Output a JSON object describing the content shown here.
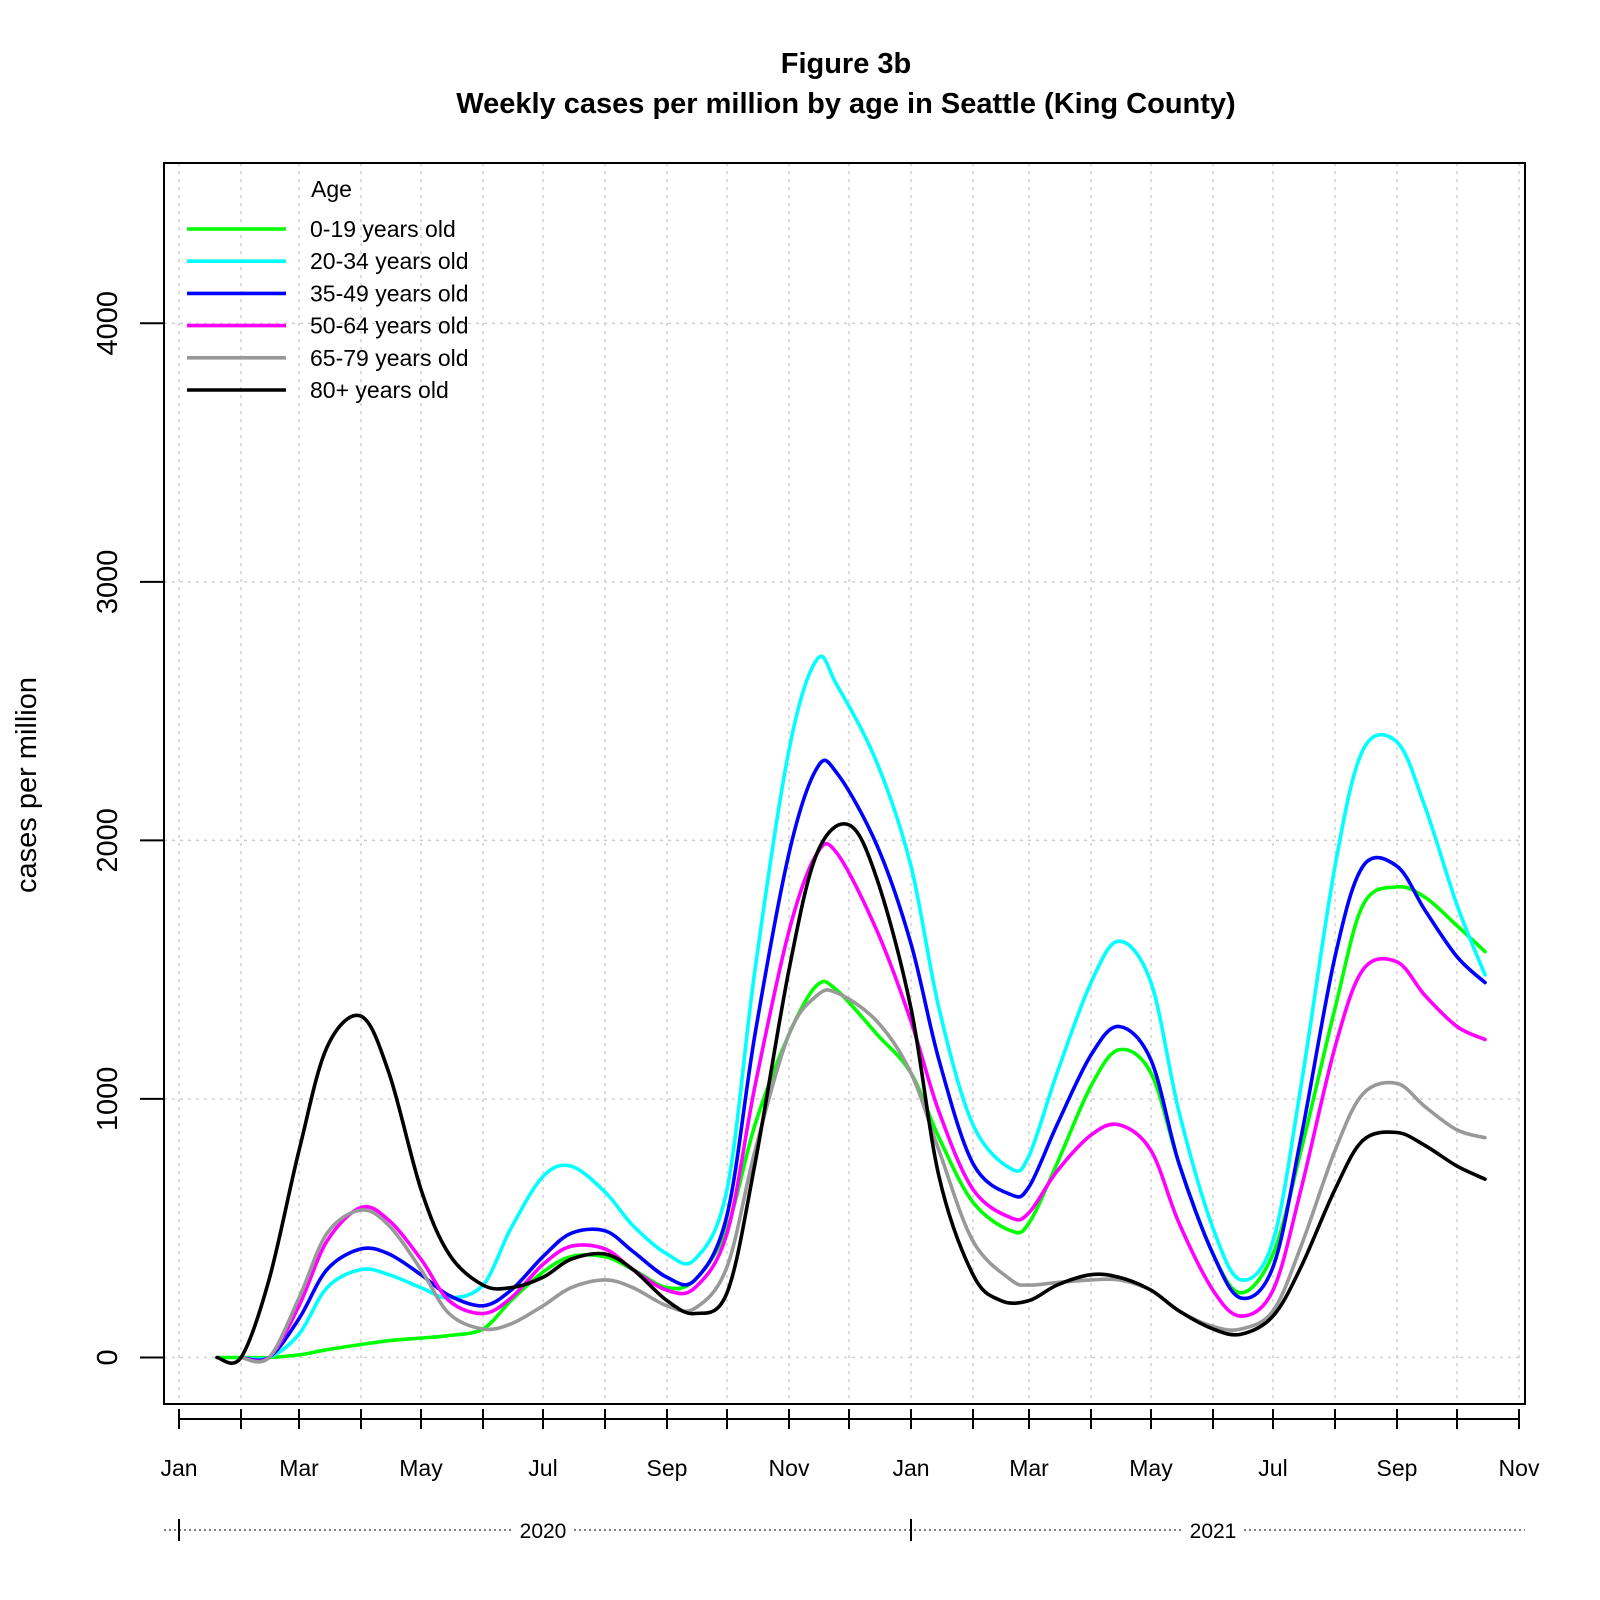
{
  "chart_data": {
    "type": "line",
    "title": "Figure 3b",
    "subtitle": "Weekly cases per million by age in Seattle (King County)",
    "ylabel": "cases per million",
    "xlabel": "",
    "ylim": [
      -180,
      4620
    ],
    "yticks": [
      0,
      1000,
      2000,
      3000,
      4000
    ],
    "xlim": [
      "2020-01-01",
      "2021-11-01"
    ],
    "grid": true,
    "legend": {
      "title": "Age",
      "placement": "top-left"
    },
    "month_ticks": [
      "2020-01-01",
      "2020-02-01",
      "2020-03-01",
      "2020-04-01",
      "2020-05-01",
      "2020-06-01",
      "2020-07-01",
      "2020-08-01",
      "2020-09-01",
      "2020-10-01",
      "2020-11-01",
      "2020-12-01",
      "2021-01-01",
      "2021-02-01",
      "2021-03-01",
      "2021-04-01",
      "2021-05-01",
      "2021-06-01",
      "2021-07-01",
      "2021-08-01",
      "2021-09-01",
      "2021-10-01",
      "2021-11-01"
    ],
    "month_labels": [
      {
        "date": "2020-01-01",
        "label": "Jan"
      },
      {
        "date": "2020-03-01",
        "label": "Mar"
      },
      {
        "date": "2020-05-01",
        "label": "May"
      },
      {
        "date": "2020-07-01",
        "label": "Jul"
      },
      {
        "date": "2020-09-01",
        "label": "Sep"
      },
      {
        "date": "2020-11-01",
        "label": "Nov"
      },
      {
        "date": "2021-01-01",
        "label": "Jan"
      },
      {
        "date": "2021-03-01",
        "label": "Mar"
      },
      {
        "date": "2021-05-01",
        "label": "May"
      },
      {
        "date": "2021-07-01",
        "label": "Jul"
      },
      {
        "date": "2021-09-01",
        "label": "Sep"
      },
      {
        "date": "2021-11-01",
        "label": "Nov"
      }
    ],
    "year_labels": [
      {
        "label": "2020",
        "center": "2020-07-01"
      },
      {
        "label": "2021",
        "center": "2021-06-01"
      }
    ],
    "series": [
      {
        "name": "0-19 years old",
        "color": "#00ff00",
        "points": [
          [
            "2020-01-20",
            0
          ],
          [
            "2020-02-01",
            0
          ],
          [
            "2020-02-15",
            0
          ],
          [
            "2020-03-01",
            10
          ],
          [
            "2020-03-15",
            30
          ],
          [
            "2020-04-01",
            50
          ],
          [
            "2020-04-15",
            65
          ],
          [
            "2020-05-01",
            75
          ],
          [
            "2020-05-15",
            85
          ],
          [
            "2020-06-01",
            110
          ],
          [
            "2020-06-15",
            220
          ],
          [
            "2020-07-01",
            330
          ],
          [
            "2020-07-15",
            390
          ],
          [
            "2020-08-01",
            390
          ],
          [
            "2020-08-15",
            340
          ],
          [
            "2020-09-01",
            270
          ],
          [
            "2020-09-15",
            300
          ],
          [
            "2020-10-01",
            500
          ],
          [
            "2020-10-15",
            900
          ],
          [
            "2020-11-01",
            1250
          ],
          [
            "2020-11-15",
            1440
          ],
          [
            "2020-11-25",
            1420
          ],
          [
            "2020-12-15",
            1250
          ],
          [
            "2021-01-01",
            1100
          ],
          [
            "2021-01-15",
            850
          ],
          [
            "2021-02-01",
            600
          ],
          [
            "2021-02-20",
            490
          ],
          [
            "2021-03-01",
            520
          ],
          [
            "2021-03-15",
            750
          ],
          [
            "2021-04-01",
            1050
          ],
          [
            "2021-04-15",
            1190
          ],
          [
            "2021-05-01",
            1100
          ],
          [
            "2021-05-15",
            750
          ],
          [
            "2021-06-01",
            400
          ],
          [
            "2021-06-15",
            250
          ],
          [
            "2021-07-01",
            400
          ],
          [
            "2021-07-15",
            800
          ],
          [
            "2021-08-01",
            1350
          ],
          [
            "2021-08-15",
            1750
          ],
          [
            "2021-09-01",
            1820
          ],
          [
            "2021-09-15",
            1780
          ],
          [
            "2021-10-01",
            1670
          ],
          [
            "2021-10-15",
            1570
          ]
        ]
      },
      {
        "name": "20-34 years old",
        "color": "#00ffff",
        "points": [
          [
            "2020-02-01",
            0
          ],
          [
            "2020-02-15",
            0
          ],
          [
            "2020-03-01",
            90
          ],
          [
            "2020-03-15",
            270
          ],
          [
            "2020-04-01",
            340
          ],
          [
            "2020-04-15",
            320
          ],
          [
            "2020-05-01",
            270
          ],
          [
            "2020-05-15",
            230
          ],
          [
            "2020-06-01",
            280
          ],
          [
            "2020-06-15",
            500
          ],
          [
            "2020-07-01",
            700
          ],
          [
            "2020-07-15",
            740
          ],
          [
            "2020-08-01",
            640
          ],
          [
            "2020-08-15",
            510
          ],
          [
            "2020-09-01",
            400
          ],
          [
            "2020-09-15",
            380
          ],
          [
            "2020-10-01",
            650
          ],
          [
            "2020-10-15",
            1500
          ],
          [
            "2020-11-01",
            2350
          ],
          [
            "2020-11-15",
            2700
          ],
          [
            "2020-11-25",
            2600
          ],
          [
            "2020-12-15",
            2300
          ],
          [
            "2021-01-01",
            1900
          ],
          [
            "2021-01-15",
            1350
          ],
          [
            "2021-02-01",
            900
          ],
          [
            "2021-02-20",
            730
          ],
          [
            "2021-03-01",
            780
          ],
          [
            "2021-03-15",
            1100
          ],
          [
            "2021-04-01",
            1450
          ],
          [
            "2021-04-15",
            1610
          ],
          [
            "2021-05-01",
            1450
          ],
          [
            "2021-05-15",
            950
          ],
          [
            "2021-06-01",
            500
          ],
          [
            "2021-06-15",
            300
          ],
          [
            "2021-07-01",
            450
          ],
          [
            "2021-07-15",
            1050
          ],
          [
            "2021-08-01",
            1900
          ],
          [
            "2021-08-15",
            2350
          ],
          [
            "2021-09-01",
            2380
          ],
          [
            "2021-09-15",
            2130
          ],
          [
            "2021-10-01",
            1750
          ],
          [
            "2021-10-15",
            1480
          ]
        ]
      },
      {
        "name": "35-49 years old",
        "color": "#0000ff",
        "points": [
          [
            "2020-02-01",
            0
          ],
          [
            "2020-02-15",
            0
          ],
          [
            "2020-03-01",
            150
          ],
          [
            "2020-03-15",
            340
          ],
          [
            "2020-04-01",
            420
          ],
          [
            "2020-04-15",
            400
          ],
          [
            "2020-05-01",
            320
          ],
          [
            "2020-05-15",
            240
          ],
          [
            "2020-06-01",
            200
          ],
          [
            "2020-06-15",
            260
          ],
          [
            "2020-07-01",
            390
          ],
          [
            "2020-07-15",
            480
          ],
          [
            "2020-08-01",
            490
          ],
          [
            "2020-08-15",
            410
          ],
          [
            "2020-09-01",
            310
          ],
          [
            "2020-09-15",
            300
          ],
          [
            "2020-10-01",
            550
          ],
          [
            "2020-10-15",
            1250
          ],
          [
            "2020-11-01",
            1950
          ],
          [
            "2020-11-15",
            2280
          ],
          [
            "2020-11-25",
            2260
          ],
          [
            "2020-12-15",
            1980
          ],
          [
            "2021-01-01",
            1600
          ],
          [
            "2021-01-15",
            1150
          ],
          [
            "2021-02-01",
            750
          ],
          [
            "2021-02-20",
            630
          ],
          [
            "2021-03-01",
            660
          ],
          [
            "2021-03-15",
            900
          ],
          [
            "2021-04-01",
            1170
          ],
          [
            "2021-04-15",
            1280
          ],
          [
            "2021-05-01",
            1150
          ],
          [
            "2021-05-15",
            750
          ],
          [
            "2021-06-01",
            400
          ],
          [
            "2021-06-15",
            230
          ],
          [
            "2021-07-01",
            350
          ],
          [
            "2021-07-15",
            850
          ],
          [
            "2021-08-01",
            1550
          ],
          [
            "2021-08-15",
            1900
          ],
          [
            "2021-09-01",
            1900
          ],
          [
            "2021-09-15",
            1730
          ],
          [
            "2021-10-01",
            1550
          ],
          [
            "2021-10-15",
            1450
          ]
        ]
      },
      {
        "name": "50-64 years old",
        "color": "#ff00ff",
        "points": [
          [
            "2020-02-01",
            0
          ],
          [
            "2020-02-15",
            0
          ],
          [
            "2020-03-01",
            200
          ],
          [
            "2020-03-15",
            450
          ],
          [
            "2020-04-01",
            580
          ],
          [
            "2020-04-15",
            530
          ],
          [
            "2020-05-01",
            380
          ],
          [
            "2020-05-15",
            220
          ],
          [
            "2020-06-01",
            170
          ],
          [
            "2020-06-15",
            230
          ],
          [
            "2020-07-01",
            360
          ],
          [
            "2020-07-15",
            430
          ],
          [
            "2020-08-01",
            420
          ],
          [
            "2020-08-15",
            340
          ],
          [
            "2020-09-01",
            260
          ],
          [
            "2020-09-15",
            270
          ],
          [
            "2020-10-01",
            480
          ],
          [
            "2020-10-15",
            1050
          ],
          [
            "2020-11-01",
            1650
          ],
          [
            "2020-11-15",
            1950
          ],
          [
            "2020-11-25",
            1950
          ],
          [
            "2020-12-15",
            1650
          ],
          [
            "2021-01-01",
            1300
          ],
          [
            "2021-01-15",
            950
          ],
          [
            "2021-02-01",
            650
          ],
          [
            "2021-02-20",
            540
          ],
          [
            "2021-03-01",
            560
          ],
          [
            "2021-03-15",
            720
          ],
          [
            "2021-04-01",
            860
          ],
          [
            "2021-04-15",
            900
          ],
          [
            "2021-05-01",
            800
          ],
          [
            "2021-05-15",
            520
          ],
          [
            "2021-06-01",
            260
          ],
          [
            "2021-06-15",
            160
          ],
          [
            "2021-07-01",
            260
          ],
          [
            "2021-07-15",
            650
          ],
          [
            "2021-08-01",
            1200
          ],
          [
            "2021-08-15",
            1500
          ],
          [
            "2021-09-01",
            1530
          ],
          [
            "2021-09-15",
            1400
          ],
          [
            "2021-10-01",
            1280
          ],
          [
            "2021-10-15",
            1230
          ]
        ]
      },
      {
        "name": "65-79 years old",
        "color": "#999999",
        "points": [
          [
            "2020-02-01",
            0
          ],
          [
            "2020-02-15",
            0
          ],
          [
            "2020-03-01",
            230
          ],
          [
            "2020-03-15",
            480
          ],
          [
            "2020-04-01",
            570
          ],
          [
            "2020-04-15",
            510
          ],
          [
            "2020-05-01",
            340
          ],
          [
            "2020-05-15",
            170
          ],
          [
            "2020-06-01",
            110
          ],
          [
            "2020-06-15",
            130
          ],
          [
            "2020-07-01",
            200
          ],
          [
            "2020-07-15",
            270
          ],
          [
            "2020-08-01",
            300
          ],
          [
            "2020-08-15",
            270
          ],
          [
            "2020-09-01",
            200
          ],
          [
            "2020-09-15",
            190
          ],
          [
            "2020-10-01",
            350
          ],
          [
            "2020-10-15",
            800
          ],
          [
            "2020-11-01",
            1250
          ],
          [
            "2020-11-15",
            1400
          ],
          [
            "2020-11-25",
            1410
          ],
          [
            "2020-12-15",
            1300
          ],
          [
            "2021-01-01",
            1100
          ],
          [
            "2021-01-15",
            800
          ],
          [
            "2021-02-01",
            450
          ],
          [
            "2021-02-20",
            300
          ],
          [
            "2021-03-01",
            280
          ],
          [
            "2021-03-15",
            290
          ],
          [
            "2021-04-01",
            300
          ],
          [
            "2021-04-15",
            300
          ],
          [
            "2021-05-01",
            260
          ],
          [
            "2021-05-15",
            180
          ],
          [
            "2021-06-01",
            120
          ],
          [
            "2021-06-15",
            110
          ],
          [
            "2021-07-01",
            180
          ],
          [
            "2021-07-15",
            430
          ],
          [
            "2021-08-01",
            800
          ],
          [
            "2021-08-15",
            1020
          ],
          [
            "2021-09-01",
            1060
          ],
          [
            "2021-09-15",
            970
          ],
          [
            "2021-10-01",
            880
          ],
          [
            "2021-10-15",
            850
          ]
        ]
      },
      {
        "name": "80+ years old",
        "color": "#000000",
        "points": [
          [
            "2020-01-20",
            0
          ],
          [
            "2020-02-01",
            0
          ],
          [
            "2020-02-15",
            300
          ],
          [
            "2020-03-01",
            800
          ],
          [
            "2020-03-15",
            1200
          ],
          [
            "2020-04-01",
            1320
          ],
          [
            "2020-04-15",
            1100
          ],
          [
            "2020-05-01",
            650
          ],
          [
            "2020-05-15",
            400
          ],
          [
            "2020-06-01",
            280
          ],
          [
            "2020-06-15",
            270
          ],
          [
            "2020-07-01",
            310
          ],
          [
            "2020-07-15",
            380
          ],
          [
            "2020-08-01",
            400
          ],
          [
            "2020-08-15",
            340
          ],
          [
            "2020-09-01",
            220
          ],
          [
            "2020-09-15",
            170
          ],
          [
            "2020-10-01",
            250
          ],
          [
            "2020-10-15",
            750
          ],
          [
            "2020-11-01",
            1500
          ],
          [
            "2020-11-15",
            1950
          ],
          [
            "2020-12-01",
            2060
          ],
          [
            "2020-12-15",
            1850
          ],
          [
            "2021-01-01",
            1350
          ],
          [
            "2021-01-15",
            700
          ],
          [
            "2021-02-01",
            320
          ],
          [
            "2021-02-15",
            220
          ],
          [
            "2021-03-01",
            220
          ],
          [
            "2021-03-15",
            280
          ],
          [
            "2021-04-01",
            320
          ],
          [
            "2021-04-15",
            310
          ],
          [
            "2021-05-01",
            260
          ],
          [
            "2021-05-15",
            180
          ],
          [
            "2021-06-01",
            110
          ],
          [
            "2021-06-15",
            90
          ],
          [
            "2021-07-01",
            160
          ],
          [
            "2021-07-15",
            350
          ],
          [
            "2021-08-01",
            650
          ],
          [
            "2021-08-15",
            840
          ],
          [
            "2021-09-01",
            870
          ],
          [
            "2021-09-15",
            820
          ],
          [
            "2021-10-01",
            740
          ],
          [
            "2021-10-15",
            690
          ]
        ]
      }
    ]
  }
}
